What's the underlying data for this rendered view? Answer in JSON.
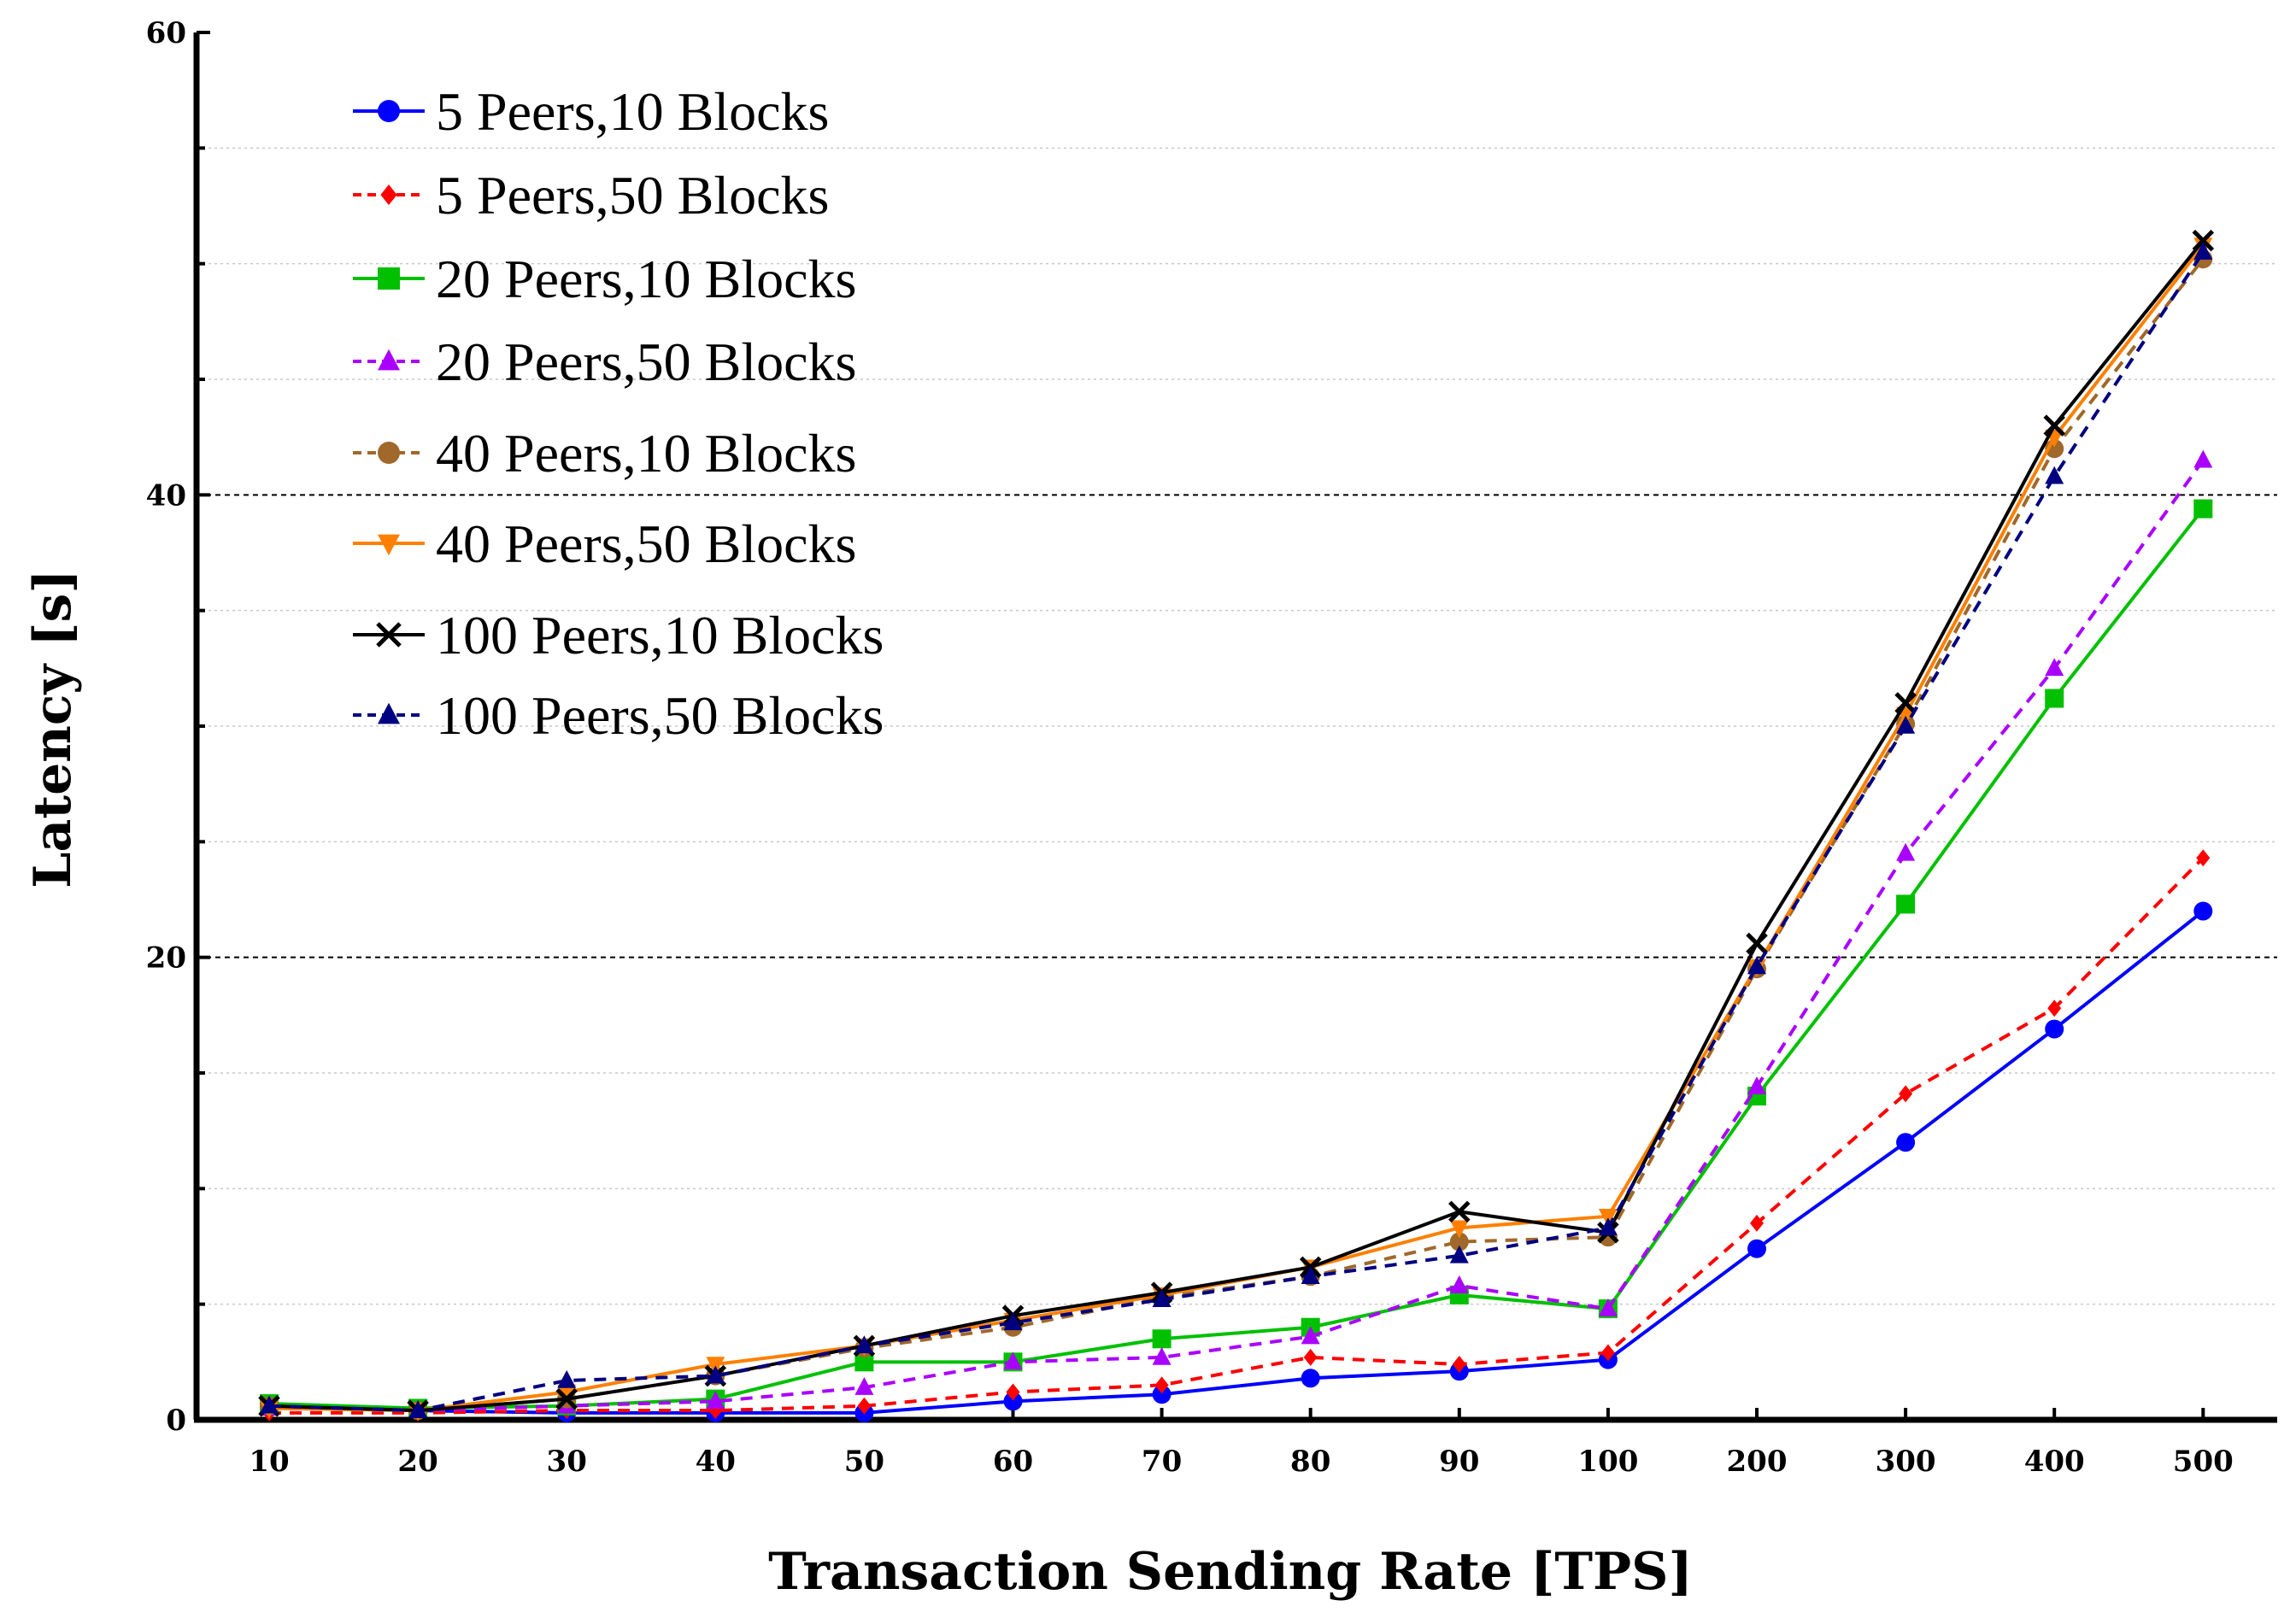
{
  "chart_data": {
    "type": "line",
    "title": "",
    "xlabel": "Transaction Sending Rate [TPS]",
    "ylabel": "Latency [s]",
    "categories": [
      "10",
      "20",
      "30",
      "40",
      "50",
      "60",
      "70",
      "80",
      "90",
      "100",
      "200",
      "300",
      "400",
      "500"
    ],
    "ylim": [
      0,
      60
    ],
    "yticks": [
      "0",
      "20",
      "40",
      "60"
    ],
    "grid": "major dashed at 20 and 40, minor dotted every 5",
    "legend_position": "top-left",
    "series": [
      {
        "name": "5 Peers,10 Blocks",
        "color": "#0000ff",
        "dash": "solid",
        "marker": "circle",
        "values": [
          0.6,
          0.4,
          0.3,
          0.3,
          0.3,
          0.8,
          1.1,
          1.8,
          2.1,
          2.6,
          7.4,
          12.0,
          16.9,
          22.0
        ]
      },
      {
        "name": "5 Peers,50 Blocks",
        "color": "#ff0000",
        "dash": "dashed",
        "marker": "diamond",
        "values": [
          0.3,
          0.3,
          0.4,
          0.4,
          0.6,
          1.2,
          1.5,
          2.7,
          2.4,
          2.9,
          8.5,
          14.1,
          17.8,
          24.3
        ]
      },
      {
        "name": "20 Peers,10 Blocks",
        "color": "#00c000",
        "dash": "solid",
        "marker": "square",
        "values": [
          0.7,
          0.5,
          0.6,
          0.9,
          2.5,
          2.5,
          3.5,
          4.0,
          5.4,
          4.8,
          14.0,
          22.3,
          31.2,
          39.4
        ]
      },
      {
        "name": "20 Peers,50 Blocks",
        "color": "#aa00ff",
        "dash": "dashed",
        "marker": "triangle-up",
        "values": [
          0.5,
          0.4,
          0.6,
          0.8,
          1.4,
          2.5,
          2.7,
          3.6,
          5.8,
          4.8,
          14.4,
          24.5,
          32.5,
          41.5
        ]
      },
      {
        "name": "40 Peers,10 Blocks",
        "color": "#a0682a",
        "dash": "dashed",
        "marker": "circle",
        "values": [
          0.6,
          0.4,
          0.9,
          1.9,
          3.1,
          4.0,
          5.3,
          6.2,
          7.7,
          7.9,
          19.5,
          30.1,
          42.0,
          50.2
        ]
      },
      {
        "name": "40 Peers,50 Blocks",
        "color": "#ff8000",
        "dash": "solid",
        "marker": "triangle-down",
        "values": [
          0.5,
          0.4,
          1.2,
          2.4,
          3.2,
          4.3,
          5.4,
          6.6,
          8.3,
          8.8,
          19.6,
          30.5,
          42.5,
          50.8
        ]
      },
      {
        "name": "100 Peers,10 Blocks",
        "color": "#000000",
        "dash": "solid",
        "marker": "x",
        "values": [
          0.6,
          0.4,
          0.9,
          1.9,
          3.2,
          4.5,
          5.5,
          6.6,
          9.0,
          8.1,
          20.6,
          31.0,
          43.0,
          51.0
        ]
      },
      {
        "name": "100 Peers,50 Blocks",
        "color": "#000080",
        "dash": "dashed",
        "marker": "triangle-up",
        "values": [
          0.6,
          0.4,
          1.7,
          1.9,
          3.2,
          4.2,
          5.2,
          6.2,
          7.1,
          8.3,
          19.6,
          30.0,
          40.8,
          50.5
        ]
      }
    ]
  }
}
